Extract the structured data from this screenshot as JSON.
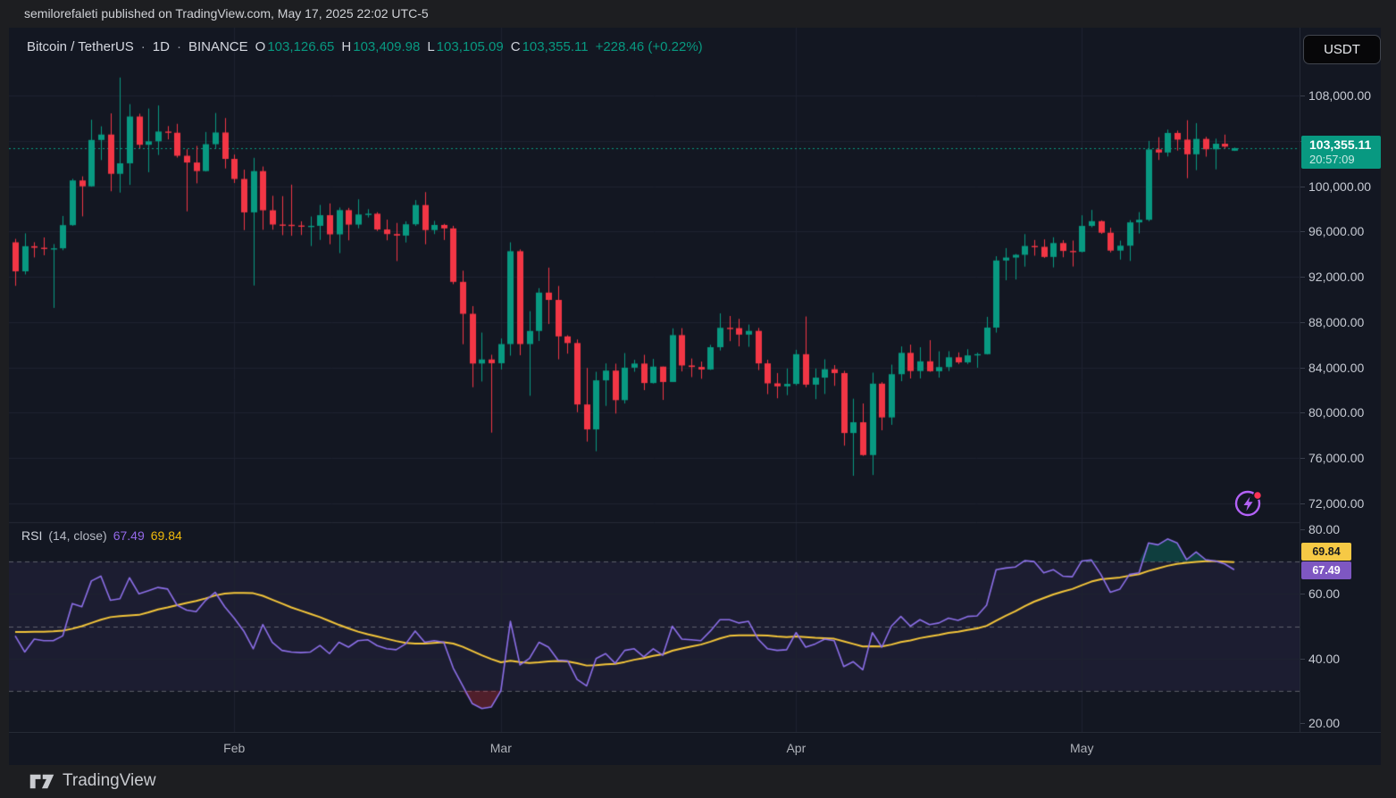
{
  "attribution": {
    "text": "semilorefaleti published on TradingView.com, May 17, 2025 22:02 UTC-5"
  },
  "header": {
    "symbol": "Bitcoin / TetherUS",
    "sep": "·",
    "interval": "1D",
    "exchange": "BINANCE",
    "o_label": "O",
    "o": "103,126.65",
    "h_label": "H",
    "h": "103,409.98",
    "l_label": "L",
    "l": "103,105.09",
    "c_label": "C",
    "c": "103,355.11",
    "change": "+228.46 (+0.22%)"
  },
  "currency_button": {
    "label": "USDT"
  },
  "price_scale": {
    "ticks": [
      {
        "label": "108,000.00",
        "value": 108000
      },
      {
        "label": "104,000.00",
        "value": 104000
      },
      {
        "label": "100,000.00",
        "value": 100000
      },
      {
        "label": "96,000.00",
        "value": 96000
      },
      {
        "label": "92,000.00",
        "value": 92000
      },
      {
        "label": "88,000.00",
        "value": 88000
      },
      {
        "label": "84,000.00",
        "value": 84000
      },
      {
        "label": "80,000.00",
        "value": 80000
      },
      {
        "label": "76,000.00",
        "value": 76000
      },
      {
        "label": "72,000.00",
        "value": 72000
      }
    ],
    "last": {
      "price": "103,355.11",
      "countdown": "20:57:09"
    }
  },
  "time_axis": {
    "months": [
      {
        "label": "Feb",
        "index": 23
      },
      {
        "label": "Mar",
        "index": 51
      },
      {
        "label": "Apr",
        "index": 82
      },
      {
        "label": "May",
        "index": 112
      }
    ]
  },
  "rsi": {
    "title": "RSI",
    "params": "(14, close)",
    "value": "67.49",
    "ma": "69.84",
    "ticks": [
      {
        "label": "80.00",
        "value": 80
      },
      {
        "label": "60.00",
        "value": 60
      },
      {
        "label": "40.00",
        "value": 40
      },
      {
        "label": "20.00",
        "value": 20
      }
    ],
    "guides": [
      70,
      50,
      30
    ]
  },
  "footer": {
    "brand": "TradingView"
  },
  "icons": {
    "lightning": "lightning-bolt-icon",
    "notification_dot": "red-dot"
  },
  "colors": {
    "chart_bg": "#131722",
    "grid": "#1e2230",
    "up": "#089981",
    "down": "#f23645",
    "price_line": "#089981",
    "guide": "rgba(149,152,161,0.55)",
    "divider": "#252a36",
    "rsi_line": "#8c6fe8",
    "rsi_ma_line": "#f3c53a",
    "rsi_band": "rgba(136,106,235,0.08)",
    "overbought_fill": "rgba(8,153,129,0.30)",
    "oversold_fill": "rgba(242,54,69,0.28)",
    "badge_green": "#089981",
    "badge_yellow": "#f6c945",
    "badge_purple": "#7e57c2"
  },
  "chart_data": {
    "type": "candlestick",
    "symbol": "Bitcoin / TetherUS",
    "exchange": "BINANCE",
    "interval": "1D",
    "start_date": "2025-01-09",
    "end_date": "2025-05-17",
    "last_bar": {
      "open": 103126.65,
      "high": 103409.98,
      "low": 103105.09,
      "close": 103355.11,
      "change": 228.46,
      "change_pct": 0.22
    },
    "price_axis": {
      "tick_values": [
        108000,
        104000,
        100000,
        96000,
        92000,
        88000,
        84000,
        80000,
        76000,
        72000
      ],
      "visible_range": [
        70400,
        114000
      ]
    },
    "rsi_axis": {
      "tick_values": [
        80,
        60,
        40,
        20
      ],
      "guide_values": [
        70,
        50,
        30
      ],
      "visible_range": [
        17,
        82
      ]
    },
    "overbought_level": 70,
    "oversold_level": 30,
    "midline": 50,
    "candles": [
      [
        95043,
        95350,
        91203,
        92484
      ],
      [
        92484,
        95836,
        92206,
        94701
      ],
      [
        94701,
        95050,
        93712,
        94566
      ],
      [
        94566,
        95473,
        93900,
        94488
      ],
      [
        94488,
        94890,
        89256,
        94516
      ],
      [
        94516,
        97371,
        94346,
        96560
      ],
      [
        96560,
        100650,
        96500,
        100504
      ],
      [
        100504,
        100866,
        97335,
        99987
      ],
      [
        99987,
        105865,
        99950,
        104077
      ],
      [
        104077,
        105280,
        102300,
        104556
      ],
      [
        104556,
        106422,
        99550,
        101089
      ],
      [
        101089,
        109588,
        99432,
        102016
      ],
      [
        102016,
        107240,
        100110,
        106146
      ],
      [
        106146,
        106394,
        103340,
        103653
      ],
      [
        103653,
        106850,
        101230,
        103960
      ],
      [
        103960,
        107120,
        102750,
        104819
      ],
      [
        104819,
        105300,
        104125,
        104714
      ],
      [
        104714,
        105500,
        102520,
        102682
      ],
      [
        102682,
        103260,
        97777,
        102087
      ],
      [
        102087,
        103550,
        100250,
        101332
      ],
      [
        101332,
        104782,
        101290,
        103703
      ],
      [
        103703,
        106457,
        103300,
        104735
      ],
      [
        104735,
        106012,
        101560,
        102405
      ],
      [
        102405,
        102785,
        100279,
        100635
      ],
      [
        100635,
        101456,
        96120,
        97688
      ],
      [
        97688,
        102500,
        91231,
        101328
      ],
      [
        101328,
        101735,
        96150,
        97871
      ],
      [
        97871,
        99149,
        96155,
        96615
      ],
      [
        96615,
        99120,
        95676,
        96593
      ],
      [
        96593,
        100137,
        95620,
        96529
      ],
      [
        96529,
        96900,
        95688,
        96482
      ],
      [
        96482,
        97324,
        94713,
        96500
      ],
      [
        96500,
        98345,
        95256,
        97437
      ],
      [
        97437,
        98478,
        94876,
        95747
      ],
      [
        95747,
        98120,
        94088,
        97885
      ],
      [
        97885,
        98086,
        95217,
        96608
      ],
      [
        96608,
        98841,
        96280,
        97500
      ],
      [
        97500,
        97972,
        97238,
        97569
      ],
      [
        97569,
        97704,
        96046,
        96175
      ],
      [
        96175,
        97045,
        95220,
        95773
      ],
      [
        95773,
        96754,
        93388,
        95639
      ],
      [
        95639,
        96899,
        95029,
        96635
      ],
      [
        96635,
        98772,
        96490,
        98333
      ],
      [
        98333,
        99475,
        94871,
        96125
      ],
      [
        96125,
        96935,
        95770,
        96577
      ],
      [
        96577,
        96676,
        95251,
        96273
      ],
      [
        96273,
        96500,
        91349,
        91552
      ],
      [
        91552,
        92540,
        86050,
        88736
      ],
      [
        88736,
        89413,
        82256,
        84347
      ],
      [
        84347,
        87078,
        82760,
        84705
      ],
      [
        84705,
        85120,
        78248,
        84373
      ],
      [
        84373,
        86558,
        83824,
        86064
      ],
      [
        86064,
        95043,
        85040,
        94261
      ],
      [
        94261,
        94416,
        85081,
        86065
      ],
      [
        86065,
        88967,
        81500,
        87222
      ],
      [
        87222,
        91000,
        86334,
        90606
      ],
      [
        90606,
        92810,
        87836,
        89962
      ],
      [
        89962,
        91191,
        84717,
        86742
      ],
      [
        86742,
        86847,
        85219,
        86154
      ],
      [
        86154,
        86471,
        80052,
        80734
      ],
      [
        80734,
        83955,
        77459,
        78532
      ],
      [
        78532,
        83618,
        76606,
        82862
      ],
      [
        82862,
        84358,
        80607,
        83722
      ],
      [
        83722,
        84336,
        79931,
        81115
      ],
      [
        81115,
        85270,
        80818,
        83983
      ],
      [
        83983,
        84676,
        83618,
        84343
      ],
      [
        84343,
        85117,
        82000,
        82625
      ],
      [
        82625,
        84756,
        82577,
        84075
      ],
      [
        84075,
        84075,
        81134,
        82718
      ],
      [
        82718,
        87453,
        82718,
        86854
      ],
      [
        86854,
        87470,
        83650,
        84175
      ],
      [
        84175,
        84792,
        83150,
        84043
      ],
      [
        84043,
        84522,
        83000,
        83820
      ],
      [
        83820,
        85999,
        83780,
        85787
      ],
      [
        85787,
        88772,
        85495,
        87498
      ],
      [
        87498,
        88543,
        86322,
        87471
      ],
      [
        87471,
        88289,
        85861,
        86900
      ],
      [
        86900,
        87786,
        85820,
        87227
      ],
      [
        87227,
        87489,
        83766,
        84359
      ],
      [
        84359,
        84679,
        81644,
        82597
      ],
      [
        82597,
        83505,
        81279,
        82334
      ],
      [
        82334,
        83914,
        81555,
        82548
      ],
      [
        82548,
        85559,
        82424,
        85169
      ],
      [
        85169,
        88500,
        82250,
        82485
      ],
      [
        82485,
        83909,
        81200,
        83102
      ],
      [
        83102,
        84720,
        81659,
        83843
      ],
      [
        83843,
        84207,
        82377,
        83504
      ],
      [
        83504,
        83704,
        77097,
        78214
      ],
      [
        78214,
        81243,
        74436,
        79163
      ],
      [
        79163,
        80823,
        76198,
        76271
      ],
      [
        76271,
        83541,
        74508,
        82573
      ],
      [
        82573,
        82700,
        78456,
        79591
      ],
      [
        79591,
        84247,
        78936,
        83404
      ],
      [
        83404,
        85856,
        82785,
        85287
      ],
      [
        85287,
        86015,
        83027,
        83684
      ],
      [
        83684,
        85785,
        83034,
        84542
      ],
      [
        84542,
        86406,
        83614,
        83668
      ],
      [
        83668,
        85428,
        83100,
        84033
      ],
      [
        84033,
        85434,
        83683,
        84895
      ],
      [
        84895,
        85329,
        84298,
        84450
      ],
      [
        84450,
        85612,
        84301,
        85063
      ],
      [
        85063,
        85306,
        83976,
        85174
      ],
      [
        85174,
        88468,
        85143,
        87518
      ],
      [
        87518,
        93817,
        87080,
        93441
      ],
      [
        93441,
        94535,
        91697,
        93699
      ],
      [
        93699,
        94016,
        91762,
        93943
      ],
      [
        93943,
        95768,
        92898,
        94720
      ],
      [
        94720,
        95251,
        93863,
        94646
      ],
      [
        94646,
        95301,
        93665,
        93754
      ],
      [
        93754,
        95492,
        92830,
        94978
      ],
      [
        94978,
        95230,
        93725,
        94284
      ],
      [
        94284,
        95200,
        92910,
        94207
      ],
      [
        94207,
        97427,
        94153,
        96492
      ],
      [
        96492,
        97905,
        96368,
        96910
      ],
      [
        96910,
        96984,
        95788,
        95891
      ],
      [
        95891,
        96329,
        94153,
        94315
      ],
      [
        94315,
        95193,
        93519,
        94748
      ],
      [
        94748,
        97000,
        93399,
        96802
      ],
      [
        96802,
        97710,
        95828,
        97032
      ],
      [
        97032,
        103993,
        96902,
        103241
      ],
      [
        103241,
        104324,
        102313,
        102970
      ],
      [
        102970,
        104994,
        102618,
        104696
      ],
      [
        104696,
        104904,
        103139,
        104106
      ],
      [
        104106,
        105819,
        100700,
        102812
      ],
      [
        102812,
        105564,
        101412,
        104169
      ],
      [
        104169,
        104354,
        102602,
        103254
      ],
      [
        103254,
        104192,
        101482,
        103744
      ],
      [
        103744,
        104550,
        103314,
        103489
      ],
      [
        103126.65,
        103409.98,
        103105.09,
        103355.11
      ]
    ],
    "indicators": {
      "rsi": {
        "name": "RSI",
        "length": 14,
        "source": "close",
        "last": 67.49,
        "values": [
          47,
          42,
          46,
          45.5,
          45.5,
          47,
          57,
          56,
          64,
          65.5,
          58,
          58.5,
          65,
          60,
          61,
          62,
          61.5,
          56.5,
          55,
          54.5,
          58,
          60.5,
          56,
          52.5,
          48.5,
          43,
          50.5,
          45,
          42.5,
          42,
          41.8,
          42,
          44,
          41.5,
          45,
          43.5,
          45.5,
          45.8,
          44,
          43,
          42.7,
          44.5,
          48.5,
          45,
          45.5,
          45,
          37,
          31.5,
          26,
          24.5,
          25,
          30,
          51.5,
          38,
          40,
          45,
          43.5,
          39.5,
          39.3,
          33.5,
          31.5,
          40,
          41.5,
          38.5,
          42.5,
          43,
          40.5,
          43,
          41,
          50,
          46,
          45.8,
          45.5,
          48.5,
          52,
          52,
          51,
          51.5,
          46,
          43,
          42.5,
          42.7,
          48,
          43.5,
          44.5,
          46,
          45.5,
          37.5,
          39,
          36.5,
          48,
          43.5,
          50,
          53,
          50,
          52,
          50.5,
          51,
          52.5,
          51.8,
          53,
          53.2,
          56.5,
          67.5,
          68,
          68.3,
          70.3,
          70,
          66.5,
          67.5,
          65.5,
          65.3,
          70.2,
          70.5,
          66,
          60.5,
          61.5,
          66,
          66.5,
          75.8,
          75.2,
          77,
          75.8,
          70.6,
          73,
          70.6,
          70.2,
          69.3,
          67.49
        ]
      },
      "rsi_ma": {
        "name": "RSI-based MA",
        "last": 69.84,
        "values": [
          48.2,
          48.2,
          48.3,
          48.3,
          48.4,
          48.6,
          49.2,
          50,
          51,
          52,
          52.8,
          53.1,
          53.3,
          53.5,
          54.3,
          55.2,
          55.8,
          56.5,
          57.2,
          57.8,
          58.6,
          59.5,
          60.1,
          60.3,
          60.3,
          60.2,
          59.4,
          58.2,
          57,
          55.8,
          54.8,
          53.8,
          52.8,
          51.6,
          50.4,
          49.3,
          48.3,
          47.5,
          46.8,
          46.1,
          45.4,
          44.8,
          44.6,
          44.6,
          44.8,
          45,
          44.6,
          43.6,
          42.3,
          41,
          39.8,
          38.8,
          39.3,
          38.9,
          38.6,
          38.8,
          39.1,
          39.2,
          39.1,
          38.5,
          37.8,
          37.9,
          38.2,
          38.3,
          38.9,
          39.6,
          40.1,
          40.8,
          41.3,
          42.4,
          43.1,
          43.7,
          44.3,
          45.2,
          46.2,
          47,
          47.2,
          47.2,
          47.2,
          47.1,
          46.8,
          46.6,
          46.8,
          46.6,
          46.4,
          46.3,
          46.1,
          45.3,
          44.5,
          43.7,
          43.8,
          43.7,
          44.3,
          45.1,
          45.6,
          46.3,
          46.8,
          47.3,
          47.9,
          48.3,
          48.8,
          49.3,
          50.1,
          51.7,
          53.2,
          54.6,
          56.2,
          57.6,
          58.7,
          59.8,
          60.7,
          61.5,
          62.7,
          63.8,
          64.5,
          64.8,
          65.1,
          65.6,
          66.1,
          67.1,
          67.9,
          68.7,
          69.3,
          69.6,
          69.9,
          70.1,
          70.1,
          70,
          69.84
        ]
      }
    }
  }
}
